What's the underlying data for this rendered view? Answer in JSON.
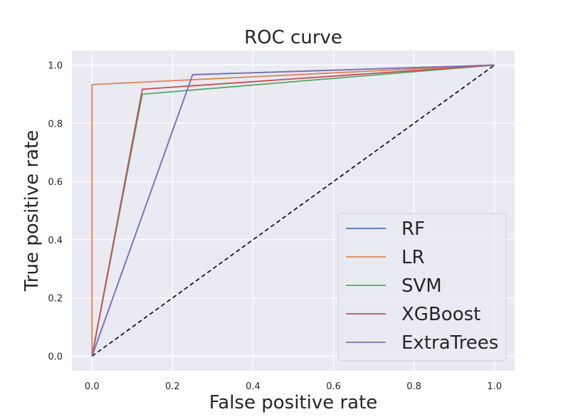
{
  "chart_data": {
    "type": "line",
    "title": "ROC curve",
    "xlabel": "False positive rate",
    "ylabel": "True positive rate",
    "xlim": [
      -0.05,
      1.05
    ],
    "ylim": [
      -0.05,
      1.05
    ],
    "xticks": [
      0.0,
      0.2,
      0.4,
      0.6,
      0.8,
      1.0
    ],
    "yticks": [
      0.0,
      0.2,
      0.4,
      0.6,
      0.8,
      1.0
    ],
    "xtick_labels": [
      "0.0",
      "0.2",
      "0.4",
      "0.6",
      "0.8",
      "1.0"
    ],
    "ytick_labels": [
      "0.0",
      "0.2",
      "0.4",
      "0.6",
      "0.8",
      "1.0"
    ],
    "grid": true,
    "legend_position": "bottom-right",
    "background": "#eaeaf2",
    "series": [
      {
        "name": "RF",
        "color": "#4c72b0",
        "x": [
          0.0,
          0.25,
          1.0
        ],
        "y": [
          0.0,
          0.967,
          1.0
        ]
      },
      {
        "name": "LR",
        "color": "#dd8452",
        "x": [
          0.0,
          0.0,
          1.0
        ],
        "y": [
          0.0,
          0.933,
          1.0
        ]
      },
      {
        "name": "SVM",
        "color": "#55a868",
        "x": [
          0.0,
          0.125,
          1.0
        ],
        "y": [
          0.0,
          0.9,
          1.0
        ]
      },
      {
        "name": "XGBoost",
        "color": "#c44e52",
        "x": [
          0.0,
          0.125,
          1.0
        ],
        "y": [
          0.0,
          0.917,
          1.0
        ]
      },
      {
        "name": "ExtraTrees",
        "color": "#8172b3",
        "x": [
          0.0,
          0.25,
          1.0
        ],
        "y": [
          0.0,
          0.967,
          1.0
        ]
      }
    ],
    "reference_line": {
      "color": "#1a1a1a",
      "style": "dashed",
      "x": [
        0.0,
        1.0
      ],
      "y": [
        0.0,
        1.0
      ]
    }
  }
}
